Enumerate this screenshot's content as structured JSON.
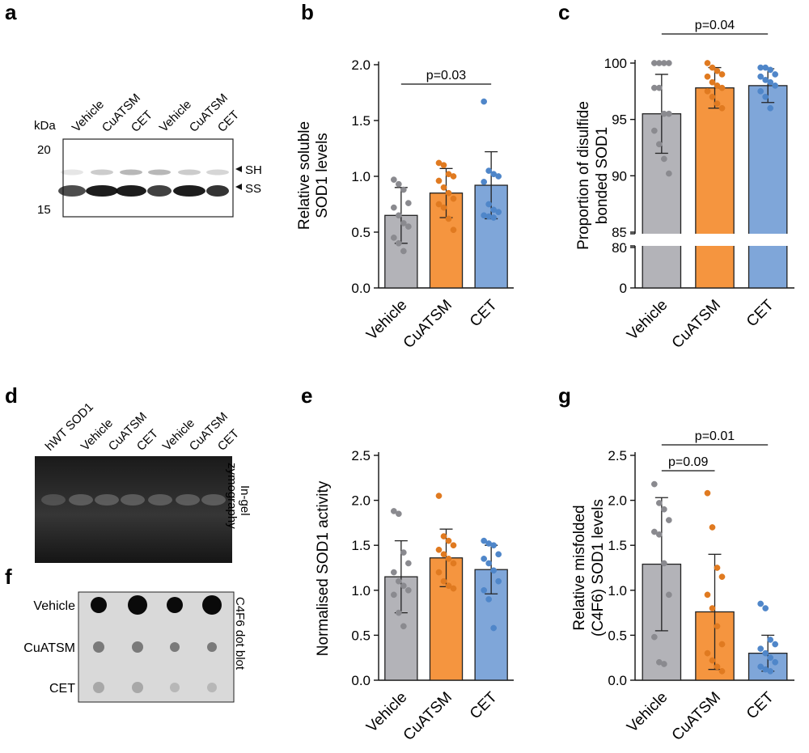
{
  "colors": {
    "vehicle": "#b3b3b8",
    "cuatsm": "#f5953f",
    "cet": "#7fa6d9",
    "vehicle_dot": "#8a8a8f",
    "cuatsm_dot": "#e07a20",
    "cet_dot": "#4f86c9"
  },
  "panel_letters": {
    "a": "a",
    "b": "b",
    "c": "c",
    "d": "d",
    "e": "e",
    "f": "f",
    "g": "g"
  },
  "blot_a": {
    "kda": "kDa",
    "lanes": [
      "Vehicle",
      "CuATSM",
      "CET",
      "Vehicle",
      "CuATSM",
      "CET"
    ],
    "marker_top": "20",
    "marker_bottom": "15",
    "band_sh": "SH",
    "band_ss": "SS"
  },
  "blot_d": {
    "lanes": [
      "hWT SOD1",
      "Vehicle",
      "CuATSM",
      "CET",
      "Vehicle",
      "CuATSM",
      "CET"
    ],
    "side_label_1": "In-gel",
    "side_label_2": "zymography"
  },
  "blot_f": {
    "rows": [
      "Vehicle",
      "CuATSM",
      "CET"
    ],
    "side_label": "C4F6 dot blot"
  },
  "chart_data": [
    {
      "panel": "b",
      "type": "bar",
      "categories": [
        "Vehicle",
        "CuATSM",
        "CET"
      ],
      "values": [
        0.65,
        0.85,
        0.92
      ],
      "error_sd": [
        0.25,
        0.22,
        0.3
      ],
      "points": [
        [
          0.97,
          0.93,
          0.88,
          0.76,
          0.72,
          0.65,
          0.58,
          0.55,
          0.45,
          0.4,
          0.33
        ],
        [
          1.12,
          1.1,
          1.02,
          1.0,
          0.96,
          0.9,
          0.85,
          0.8,
          0.75,
          0.72,
          0.62,
          0.52
        ],
        [
          1.67,
          1.05,
          1.02,
          1.0,
          0.95,
          0.75,
          0.7,
          0.68,
          0.65,
          0.64,
          0.63
        ]
      ],
      "ylabel_line1": "Relative  soluble",
      "ylabel_line2": "SOD1 levels",
      "ylim": [
        0,
        2.0
      ],
      "yticks": [
        "0.0",
        "0.5",
        "1.0",
        "1.5",
        "2.0"
      ],
      "ytick_values": [
        0,
        0.5,
        1.0,
        1.5,
        2.0
      ],
      "comparisons": [
        {
          "from": 0,
          "to": 2,
          "label": "p=0.03"
        }
      ]
    },
    {
      "panel": "c",
      "type": "bar",
      "categories": [
        "Vehicle",
        "CuATSM",
        "CET"
      ],
      "values": [
        95.5,
        97.8,
        98.0
      ],
      "error_sd": [
        3.5,
        1.8,
        1.5
      ],
      "points": [
        [
          100,
          100,
          100,
          100,
          97.8,
          97.8,
          95.5,
          95.5,
          94,
          92.8,
          91.5,
          90.2
        ],
        [
          100,
          99.6,
          99.3,
          99.0,
          98.8,
          98.3,
          98.0,
          97.8,
          97.5,
          97.0,
          96.4,
          96.0
        ],
        [
          99.6,
          99.6,
          99.4,
          99.0,
          98.8,
          98.5,
          98.3,
          98.0,
          97.5,
          97.0,
          96.0
        ]
      ],
      "ylabel_line1": "Proportion of disulfide",
      "ylabel_line2": "bonded SOD1",
      "yticks_upper": [
        "85",
        "90",
        "95",
        "100"
      ],
      "ytick_upper_values": [
        85,
        90,
        95,
        100
      ],
      "yticks_lower": [
        "0",
        "80"
      ],
      "ylim_upper": [
        85,
        100
      ],
      "ylim_lower": [
        0,
        80
      ],
      "comparisons": [
        {
          "from": 0,
          "to": 2,
          "label": "p=0.04"
        }
      ]
    },
    {
      "panel": "e",
      "type": "bar",
      "categories": [
        "Vehicle",
        "CuATSM",
        "CET"
      ],
      "values": [
        1.15,
        1.36,
        1.23
      ],
      "error_sd": [
        0.4,
        0.32,
        0.27
      ],
      "points": [
        [
          1.88,
          1.85,
          1.42,
          1.3,
          1.2,
          1.1,
          1.05,
          1.0,
          0.95,
          0.75,
          0.6
        ],
        [
          2.05,
          1.6,
          1.55,
          1.5,
          1.45,
          1.4,
          1.35,
          1.3,
          1.2,
          1.1,
          1.05,
          1.02
        ],
        [
          1.55,
          1.52,
          1.5,
          1.4,
          1.35,
          1.3,
          1.22,
          1.1,
          1.0,
          0.9,
          0.58
        ]
      ],
      "ylabel": "Normalised  SOD1 activity",
      "ylim": [
        0,
        2.5
      ],
      "yticks": [
        "0.0",
        "0.5",
        "1.0",
        "1.5",
        "2.0",
        "2.5"
      ],
      "ytick_values": [
        0,
        0.5,
        1.0,
        1.5,
        2.0,
        2.5
      ],
      "comparisons": []
    },
    {
      "panel": "g",
      "type": "bar",
      "categories": [
        "Vehicle",
        "CuATSM",
        "CET"
      ],
      "values": [
        1.29,
        0.76,
        0.3
      ],
      "error_sd": [
        0.74,
        0.64,
        0.2
      ],
      "points": [
        [
          2.18,
          1.97,
          1.9,
          1.78,
          1.65,
          1.62,
          1.3,
          0.95,
          0.48,
          0.2,
          0.18
        ],
        [
          2.08,
          1.7,
          1.25,
          1.15,
          0.95,
          0.8,
          0.6,
          0.4,
          0.3,
          0.22,
          0.15,
          0.1
        ],
        [
          0.85,
          0.8,
          0.45,
          0.4,
          0.35,
          0.3,
          0.25,
          0.2,
          0.15,
          0.12,
          0.1
        ]
      ],
      "ylabel_line1": "Relative  misfolded",
      "ylabel_line2": "(C4F6) SOD1 levels",
      "ylim": [
        0,
        2.5
      ],
      "yticks": [
        "0.0",
        "0.5",
        "1.0",
        "1.5",
        "2.0",
        "2.5"
      ],
      "ytick_values": [
        0,
        0.5,
        1.0,
        1.5,
        2.0,
        2.5
      ],
      "comparisons": [
        {
          "from": 0,
          "to": 1,
          "label": "p=0.09"
        },
        {
          "from": 0,
          "to": 2,
          "label": "p=0.01"
        }
      ]
    }
  ]
}
